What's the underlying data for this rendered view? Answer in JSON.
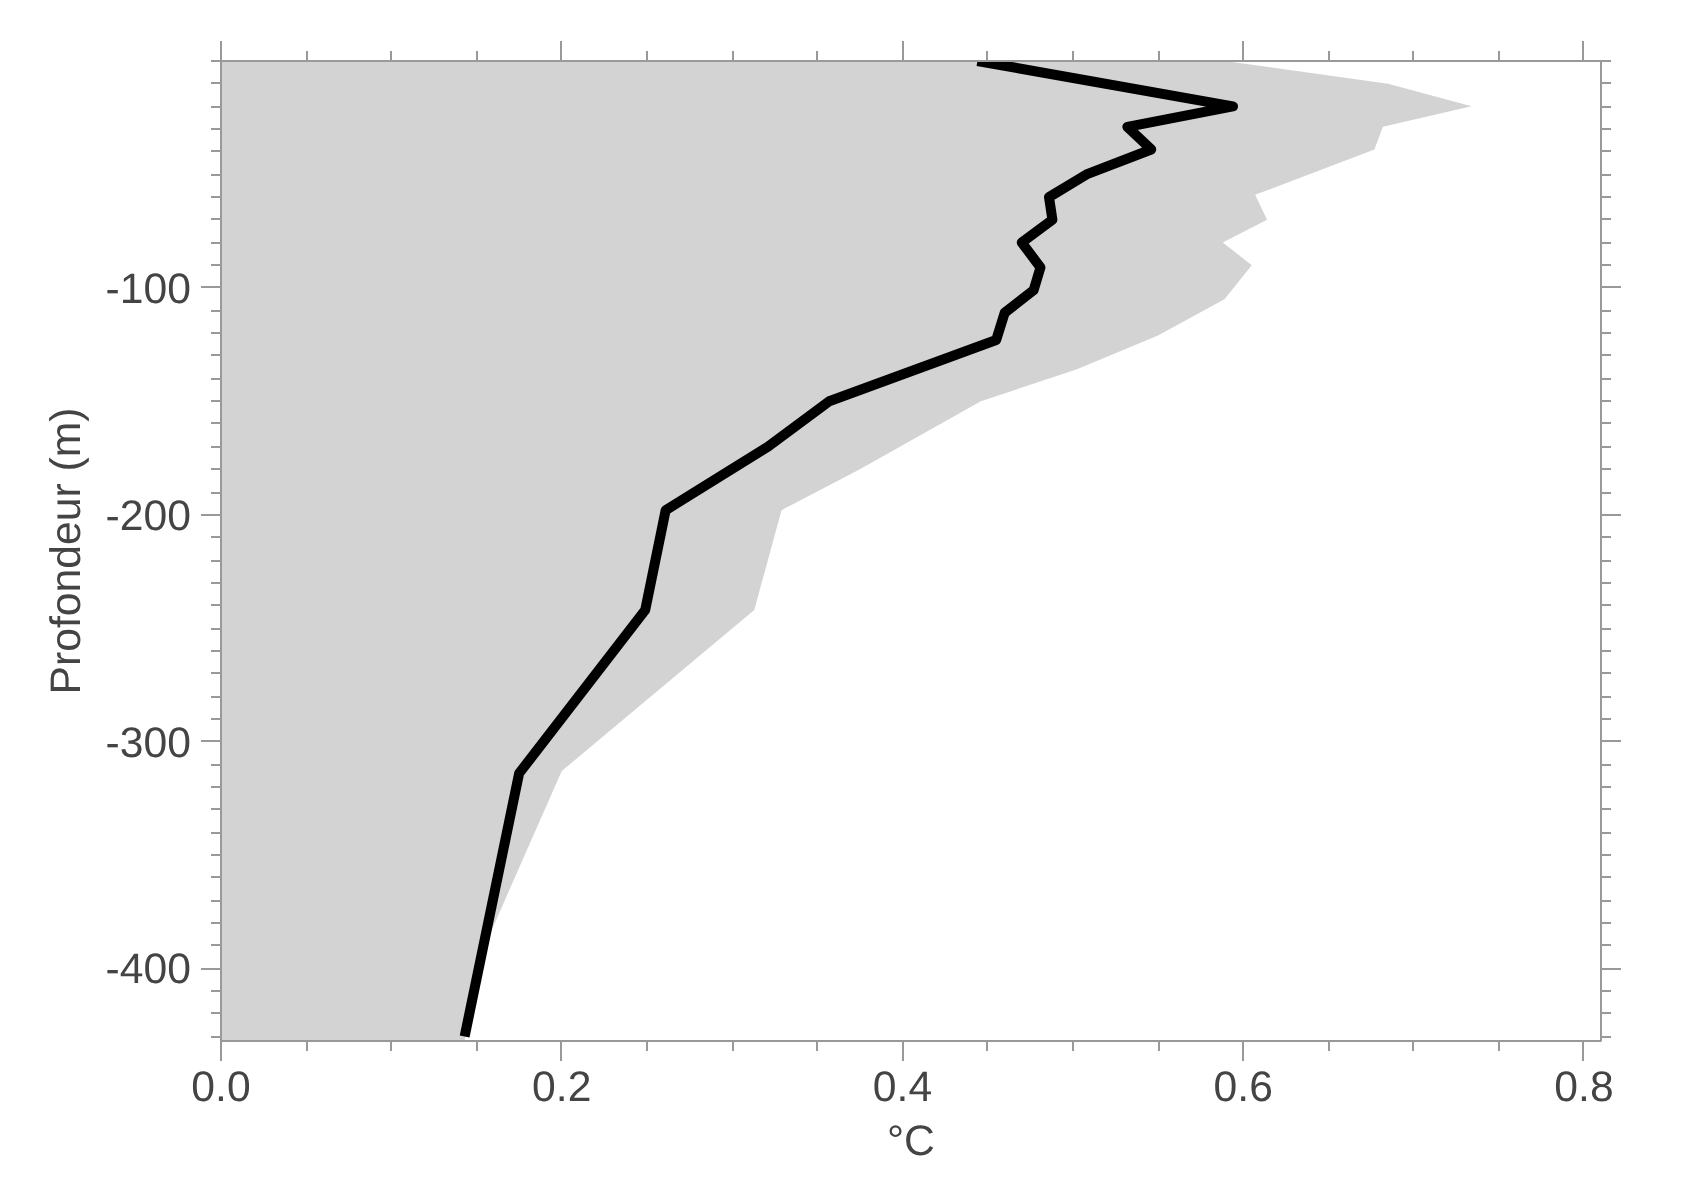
{
  "chart_data": {
    "type": "line",
    "orientation": "horizontal",
    "xlabel": "°C",
    "ylabel": "Profondeur (m)",
    "xlim": [
      0,
      0.81
    ],
    "ylim": [
      -432,
      0
    ],
    "xticks": [
      {
        "value": 0,
        "label": "0.0"
      },
      0.2,
      0.4,
      0.6,
      0.8
    ],
    "yticks": [
      -400,
      -300,
      -200,
      -100
    ],
    "grid": false,
    "series": [
      {
        "type": "area",
        "color": "#d3d3d3",
        "values": [
          0.589,
          0.685,
          0.734,
          0.682,
          0.677,
          0.607,
          0.614,
          0.588,
          0.605,
          0.589,
          0.55,
          0.502,
          0.446,
          0.375,
          0.329,
          0.313,
          0.2,
          0.149,
          0.143
        ],
        "x": [
          0,
          -10,
          -20,
          -29,
          -39,
          -59,
          -70,
          -80,
          -90,
          -105,
          -121,
          -136,
          -150,
          -180,
          -198,
          -242,
          -313,
          -400,
          -432
        ]
      },
      {
        "color": "#000000",
        "values": [
          0.444,
          0.594,
          0.532,
          0.546,
          0.508,
          0.486,
          0.488,
          0.47,
          0.481,
          0.477,
          0.46,
          0.455,
          0.357,
          0.321,
          0.261,
          0.249,
          0.175,
          0.143
        ],
        "x": [
          0,
          -20,
          -29,
          -39,
          -50,
          -60,
          -70,
          -80,
          -91,
          -101,
          -111,
          -123,
          -150,
          -170,
          -198,
          -242,
          -314,
          -430
        ]
      }
    ]
  }
}
